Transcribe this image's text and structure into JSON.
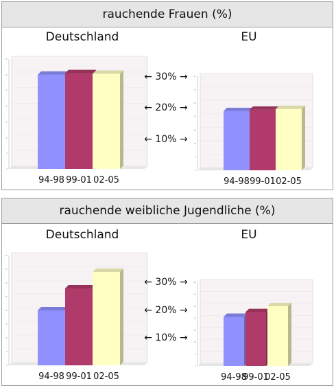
{
  "panels": [
    {
      "title": "rauchende Frauen (%)",
      "scale_labels": [
        "← 30% →",
        "← 20% →",
        "← 10% →"
      ],
      "scale_values": [
        30,
        20,
        10
      ]
    },
    {
      "title": "rauchende weibliche Jugendliche (%)",
      "scale_labels": [
        "← 30% →",
        "← 20% →",
        "← 10% →"
      ],
      "scale_values": [
        30,
        20,
        10
      ]
    }
  ],
  "colors": {
    "s1": "#9090ff",
    "s2": "#b03a6a",
    "s3": "#ffffc4"
  },
  "chart_data": [
    {
      "type": "bar",
      "title": "Deutschland",
      "categories": [
        "94-98",
        "99-01",
        "02-05"
      ],
      "values": [
        30,
        30.5,
        30.3
      ],
      "ylim": [
        0,
        35
      ],
      "yticks": [
        0,
        5,
        10,
        15,
        20,
        25,
        30,
        35
      ]
    },
    {
      "type": "bar",
      "title": "EU",
      "categories": [
        "94-98",
        "99-01",
        "02-05"
      ],
      "values": [
        22,
        22.5,
        22.8
      ],
      "ylim": [
        0,
        35
      ],
      "yticks": [
        0,
        5,
        10,
        15,
        20,
        25,
        30,
        35
      ]
    },
    {
      "type": "bar",
      "title": "Deutschland",
      "categories": [
        "94-98",
        "99-01",
        "02-05"
      ],
      "values": [
        20,
        28,
        34
      ],
      "ylim": [
        0,
        40
      ],
      "yticks": [
        0,
        5,
        10,
        15,
        20,
        25,
        30,
        35,
        40
      ]
    },
    {
      "type": "bar",
      "title": "EU",
      "categories": [
        "94-98",
        "99-01",
        "02-05"
      ],
      "values": [
        20.5,
        22.5,
        25
      ],
      "ylim": [
        0,
        35
      ],
      "yticks": [
        0,
        5,
        10,
        15,
        20,
        25,
        30,
        35
      ]
    }
  ]
}
